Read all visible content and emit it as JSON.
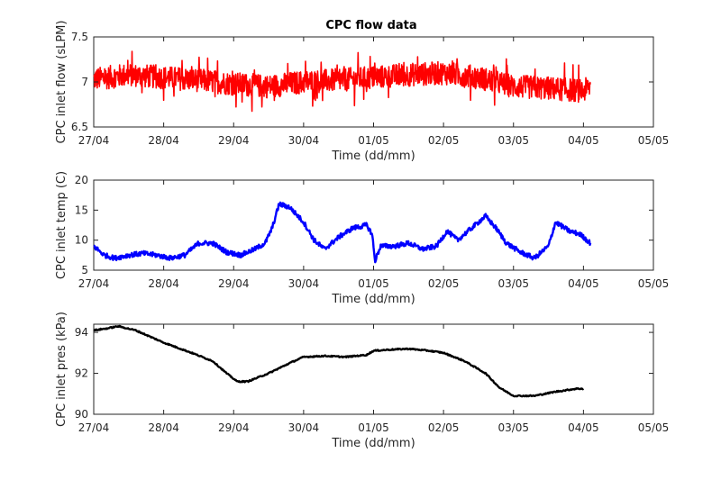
{
  "chart_data": [
    {
      "type": "line",
      "title": "CPC flow data",
      "xlabel": "Time (dd/mm)",
      "ylabel": "CPC inlet flow (sLPM)",
      "x_ticks": [
        "27/04",
        "28/04",
        "29/04",
        "30/04",
        "01/05",
        "02/05",
        "03/05",
        "04/05",
        "05/05"
      ],
      "xlim": [
        0,
        8
      ],
      "ylim": [
        6.5,
        7.5
      ],
      "y_ticks": [
        6.5,
        7,
        7.5
      ],
      "y_tick_labels": [
        "6.5",
        "7",
        "7.5"
      ],
      "grid": false,
      "series": [
        {
          "color": "#ff0000",
          "noise": "high-frequency, approx. ±0.15 sLPM with spikes to ±0.4",
          "x": [
            0,
            0.5,
            1,
            1.5,
            2,
            2.5,
            3,
            3.5,
            4,
            4.5,
            5,
            5.5,
            6,
            6.5,
            7,
            7.1
          ],
          "y": [
            7.03,
            7.08,
            7.05,
            7.02,
            6.98,
            6.95,
            7.0,
            7.02,
            7.05,
            7.08,
            7.1,
            7.05,
            6.95,
            6.93,
            6.9,
            6.95
          ]
        }
      ]
    },
    {
      "type": "line",
      "title": "",
      "xlabel": "Time (dd/mm)",
      "ylabel": "CPC inlet temp (C)",
      "x_ticks": [
        "27/04",
        "28/04",
        "29/04",
        "30/04",
        "01/05",
        "02/05",
        "03/05",
        "04/05",
        "05/05"
      ],
      "xlim": [
        0,
        8
      ],
      "ylim": [
        5,
        20
      ],
      "y_ticks": [
        5,
        10,
        15,
        20
      ],
      "y_tick_labels": [
        "5",
        "10",
        "15",
        "20"
      ],
      "grid": false,
      "series": [
        {
          "color": "#0000ff",
          "x": [
            0,
            0.15,
            0.3,
            0.5,
            0.7,
            0.9,
            1.1,
            1.3,
            1.5,
            1.7,
            1.9,
            2.1,
            2.3,
            2.45,
            2.55,
            2.65,
            2.8,
            3.0,
            3.15,
            3.3,
            3.5,
            3.7,
            3.9,
            3.98,
            4.02,
            4.1,
            4.3,
            4.5,
            4.7,
            4.9,
            5.05,
            5.2,
            5.4,
            5.6,
            5.75,
            5.9,
            6.1,
            6.3,
            6.5,
            6.6,
            6.8,
            6.95,
            7.1
          ],
          "y": [
            9.0,
            7.5,
            7.0,
            7.5,
            7.8,
            7.5,
            7.0,
            7.5,
            9.5,
            9.5,
            8.0,
            7.5,
            8.5,
            9.5,
            12.0,
            16.0,
            15.5,
            13.0,
            10.0,
            8.5,
            10.5,
            12.0,
            12.5,
            11.0,
            6.5,
            9.0,
            9.0,
            9.5,
            8.5,
            9.0,
            11.5,
            10.0,
            12.0,
            14.0,
            12.0,
            9.5,
            8.0,
            7.0,
            9.0,
            13.0,
            11.5,
            11.0,
            9.5
          ]
        }
      ]
    },
    {
      "type": "line",
      "title": "",
      "xlabel": "Time (dd/mm)",
      "ylabel": "CPC inlet pres (kPa)",
      "x_ticks": [
        "27/04",
        "28/04",
        "29/04",
        "30/04",
        "01/05",
        "02/05",
        "03/05",
        "04/05",
        "05/05"
      ],
      "xlim": [
        0,
        8
      ],
      "ylim": [
        90,
        94.4
      ],
      "y_ticks": [
        90,
        92,
        94
      ],
      "y_tick_labels": [
        "90",
        "92",
        "94"
      ],
      "grid": false,
      "series": [
        {
          "color": "#000000",
          "x": [
            0,
            0.2,
            0.35,
            0.6,
            0.8,
            1.0,
            1.4,
            1.7,
            1.9,
            2.05,
            2.2,
            2.5,
            2.8,
            3.0,
            3.3,
            3.6,
            3.9,
            4.0,
            4.2,
            4.5,
            4.8,
            5.0,
            5.3,
            5.6,
            5.8,
            6.0,
            6.3,
            6.6,
            6.9,
            7.0
          ],
          "y": [
            94.1,
            94.2,
            94.3,
            94.1,
            93.8,
            93.5,
            93.0,
            92.6,
            92.0,
            91.6,
            91.6,
            92.0,
            92.5,
            92.8,
            92.85,
            92.8,
            92.9,
            93.1,
            93.15,
            93.2,
            93.1,
            93.0,
            92.6,
            92.0,
            91.3,
            90.9,
            90.9,
            91.1,
            91.25,
            91.25
          ]
        }
      ]
    }
  ]
}
